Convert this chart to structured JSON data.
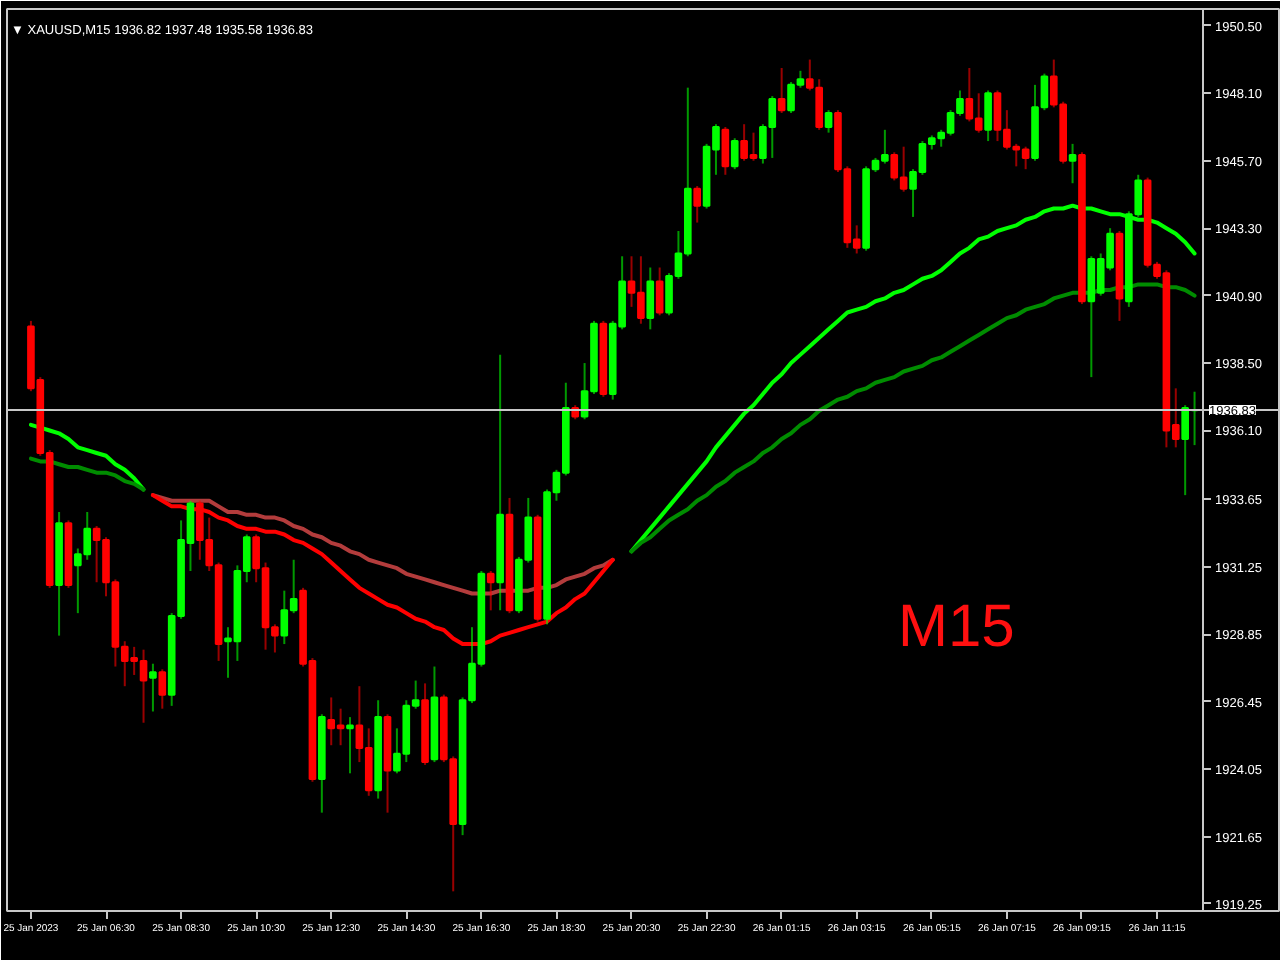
{
  "chart_data": {
    "type": "candlestick",
    "title": "▼ XAUUSD,M15 1936.82 1937.48 1935.58 1936.83",
    "annotations": [
      "M15"
    ],
    "categories": [
      "25 Jan 2023",
      null,
      null,
      null,
      null,
      null,
      null,
      null,
      "25 Jan 06:30",
      null,
      null,
      null,
      null,
      null,
      null,
      null,
      "25 Jan 08:30",
      null,
      null,
      null,
      null,
      null,
      null,
      null,
      "25 Jan 10:30",
      null,
      null,
      null,
      null,
      null,
      null,
      null,
      "25 Jan 12:30",
      null,
      null,
      null,
      null,
      null,
      null,
      null,
      "25 Jan 14:30",
      null,
      null,
      null,
      null,
      null,
      null,
      null,
      "25 Jan 16:30",
      null,
      null,
      null,
      null,
      null,
      null,
      null,
      "25 Jan 18:30",
      null,
      null,
      null,
      null,
      null,
      null,
      null,
      "25 Jan 20:30",
      null,
      null,
      null,
      null,
      null,
      null,
      null,
      "25 Jan 22:30",
      null,
      null,
      null,
      null,
      null,
      null,
      null,
      "26 Jan 01:15",
      null,
      null,
      null,
      null,
      null,
      null,
      null,
      "26 Jan 03:15",
      null,
      null,
      null,
      null,
      null,
      null,
      null,
      "26 Jan 05:15",
      null,
      null,
      null,
      null,
      null,
      null,
      null,
      "26 Jan 07:15",
      null,
      null,
      null,
      null,
      null,
      null,
      null,
      "26 Jan 09:15",
      null,
      null,
      null,
      null,
      null,
      null,
      null,
      "26 Jan 11:15",
      null,
      null,
      null,
      null
    ],
    "ohlc": [
      [
        1939.8,
        1940.0,
        1937.5,
        1937.6
      ],
      [
        1937.9,
        1938.0,
        1935.2,
        1935.3
      ],
      [
        1935.3,
        1935.4,
        1930.5,
        1930.6
      ],
      [
        1930.6,
        1933.2,
        1928.8,
        1932.8
      ],
      [
        1932.8,
        1932.9,
        1930.5,
        1930.6
      ],
      [
        1931.3,
        1931.9,
        1929.6,
        1931.7
      ],
      [
        1931.7,
        1933.2,
        1931.5,
        1932.6
      ],
      [
        1932.6,
        1932.7,
        1930.7,
        1932.2
      ],
      [
        1932.2,
        1932.3,
        1930.2,
        1930.7
      ],
      [
        1930.7,
        1930.8,
        1927.7,
        1928.4
      ],
      [
        1928.4,
        1928.6,
        1927.0,
        1927.9
      ],
      [
        1928.0,
        1928.4,
        1927.4,
        1927.9
      ],
      [
        1927.9,
        1928.3,
        1925.7,
        1927.2
      ],
      [
        1927.3,
        1927.8,
        1926.1,
        1927.5
      ],
      [
        1927.5,
        1927.6,
        1926.2,
        1926.7
      ],
      [
        1926.7,
        1929.6,
        1926.3,
        1929.5
      ],
      [
        1929.5,
        1932.9,
        1929.4,
        1932.2
      ],
      [
        1932.1,
        1933.6,
        1931.1,
        1933.5
      ],
      [
        1933.5,
        1933.6,
        1931.5,
        1932.2
      ],
      [
        1932.2,
        1933.0,
        1931.1,
        1931.3
      ],
      [
        1931.3,
        1931.4,
        1927.9,
        1928.5
      ],
      [
        1928.6,
        1929.1,
        1927.3,
        1928.7
      ],
      [
        1928.6,
        1931.3,
        1927.9,
        1931.1
      ],
      [
        1931.1,
        1932.4,
        1930.7,
        1932.3
      ],
      [
        1932.3,
        1932.4,
        1930.7,
        1931.2
      ],
      [
        1931.2,
        1931.4,
        1928.3,
        1929.1
      ],
      [
        1929.1,
        1929.2,
        1928.2,
        1928.8
      ],
      [
        1928.8,
        1930.4,
        1928.5,
        1929.7
      ],
      [
        1929.7,
        1931.5,
        1929.6,
        1930.1
      ],
      [
        1930.4,
        1930.5,
        1927.7,
        1927.8
      ],
      [
        1927.9,
        1928.0,
        1923.6,
        1923.7
      ],
      [
        1923.7,
        1926.0,
        1922.5,
        1925.9
      ],
      [
        1925.8,
        1926.6,
        1924.9,
        1925.5
      ],
      [
        1925.6,
        1926.2,
        1924.9,
        1925.5
      ],
      [
        1925.5,
        1925.9,
        1923.9,
        1925.6
      ],
      [
        1925.6,
        1927.0,
        1924.3,
        1924.8
      ],
      [
        1924.8,
        1925.5,
        1923.1,
        1923.3
      ],
      [
        1923.3,
        1926.5,
        1923.0,
        1925.9
      ],
      [
        1925.9,
        1926.0,
        1922.5,
        1924.0
      ],
      [
        1924.0,
        1925.5,
        1923.9,
        1924.6
      ],
      [
        1924.6,
        1926.5,
        1924.3,
        1926.3
      ],
      [
        1926.3,
        1927.2,
        1926.2,
        1926.5
      ],
      [
        1926.5,
        1927.1,
        1924.2,
        1924.3
      ],
      [
        1924.4,
        1927.7,
        1924.3,
        1926.6
      ],
      [
        1926.6,
        1926.7,
        1924.3,
        1924.4
      ],
      [
        1924.4,
        1924.5,
        1919.7,
        1922.1
      ],
      [
        1922.1,
        1926.6,
        1921.7,
        1926.5
      ],
      [
        1926.5,
        1929.1,
        1926.4,
        1927.8
      ],
      [
        1927.8,
        1931.1,
        1927.7,
        1931.0
      ],
      [
        1931.0,
        1931.1,
        1929.7,
        1930.7
      ],
      [
        1930.7,
        1938.8,
        1929.7,
        1933.1
      ],
      [
        1933.1,
        1933.7,
        1929.6,
        1929.7
      ],
      [
        1929.7,
        1931.6,
        1929.6,
        1931.5
      ],
      [
        1931.5,
        1933.7,
        1931.4,
        1933.0
      ],
      [
        1933.0,
        1933.1,
        1929.3,
        1929.4
      ],
      [
        1929.4,
        1934.0,
        1929.2,
        1933.9
      ],
      [
        1933.9,
        1934.7,
        1933.6,
        1934.6
      ],
      [
        1934.6,
        1937.8,
        1934.5,
        1936.9
      ],
      [
        1936.9,
        1937.0,
        1936.5,
        1936.6
      ],
      [
        1936.6,
        1938.5,
        1936.5,
        1937.5
      ],
      [
        1937.5,
        1940.0,
        1937.4,
        1939.9
      ],
      [
        1939.9,
        1940.0,
        1937.3,
        1937.4
      ],
      [
        1937.4,
        1940.0,
        1937.2,
        1939.9
      ],
      [
        1939.8,
        1942.3,
        1939.7,
        1941.4
      ],
      [
        1941.4,
        1942.3,
        1940.5,
        1941.0
      ],
      [
        1941.0,
        1942.3,
        1939.9,
        1940.1
      ],
      [
        1940.1,
        1941.9,
        1939.7,
        1941.4
      ],
      [
        1941.4,
        1941.9,
        1940.2,
        1940.3
      ],
      [
        1940.3,
        1941.7,
        1940.2,
        1941.6
      ],
      [
        1941.6,
        1943.2,
        1941.5,
        1942.4
      ],
      [
        1942.4,
        1948.3,
        1942.3,
        1944.7
      ],
      [
        1944.7,
        1944.8,
        1943.5,
        1944.1
      ],
      [
        1944.1,
        1946.3,
        1944.0,
        1946.2
      ],
      [
        1946.1,
        1947.0,
        1945.2,
        1946.9
      ],
      [
        1946.8,
        1946.9,
        1945.2,
        1945.5
      ],
      [
        1945.5,
        1946.5,
        1945.4,
        1946.4
      ],
      [
        1946.4,
        1947.0,
        1945.7,
        1945.8
      ],
      [
        1945.9,
        1946.7,
        1945.7,
        1945.8
      ],
      [
        1945.8,
        1947.0,
        1945.6,
        1946.9
      ],
      [
        1946.9,
        1948.0,
        1945.8,
        1947.9
      ],
      [
        1947.9,
        1949.0,
        1947.4,
        1947.5
      ],
      [
        1947.5,
        1948.5,
        1947.4,
        1948.4
      ],
      [
        1948.4,
        1948.9,
        1948.3,
        1948.6
      ],
      [
        1948.6,
        1949.3,
        1948.2,
        1948.3
      ],
      [
        1948.3,
        1948.6,
        1946.8,
        1946.9
      ],
      [
        1946.9,
        1947.5,
        1946.7,
        1947.4
      ],
      [
        1947.4,
        1947.5,
        1945.3,
        1945.4
      ],
      [
        1945.4,
        1945.5,
        1942.6,
        1942.8
      ],
      [
        1942.9,
        1943.4,
        1942.4,
        1942.6
      ],
      [
        1942.6,
        1945.5,
        1942.5,
        1945.4
      ],
      [
        1945.4,
        1945.8,
        1945.3,
        1945.7
      ],
      [
        1945.7,
        1946.8,
        1945.6,
        1945.9
      ],
      [
        1945.9,
        1946.0,
        1945.0,
        1945.1
      ],
      [
        1945.1,
        1946.2,
        1944.6,
        1944.7
      ],
      [
        1944.7,
        1945.4,
        1943.7,
        1945.3
      ],
      [
        1945.3,
        1946.4,
        1945.2,
        1946.3
      ],
      [
        1946.3,
        1946.6,
        1946.1,
        1946.5
      ],
      [
        1946.5,
        1946.8,
        1946.2,
        1946.7
      ],
      [
        1946.7,
        1947.5,
        1946.6,
        1947.4
      ],
      [
        1947.4,
        1948.2,
        1947.3,
        1947.9
      ],
      [
        1947.9,
        1949.0,
        1947.1,
        1947.2
      ],
      [
        1947.2,
        1948.1,
        1946.7,
        1946.8
      ],
      [
        1946.8,
        1948.2,
        1946.4,
        1948.1
      ],
      [
        1948.1,
        1948.2,
        1946.4,
        1946.8
      ],
      [
        1946.8,
        1947.5,
        1946.1,
        1946.2
      ],
      [
        1946.2,
        1946.3,
        1945.5,
        1946.1
      ],
      [
        1946.1,
        1946.2,
        1945.4,
        1945.8
      ],
      [
        1945.8,
        1948.4,
        1945.7,
        1947.6
      ],
      [
        1947.6,
        1948.8,
        1947.5,
        1948.7
      ],
      [
        1948.7,
        1949.3,
        1947.6,
        1947.7
      ],
      [
        1947.7,
        1947.8,
        1945.6,
        1945.7
      ],
      [
        1945.7,
        1946.3,
        1944.9,
        1945.9
      ],
      [
        1945.9,
        1946.0,
        1940.6,
        1940.7
      ],
      [
        1940.7,
        1942.3,
        1938.0,
        1942.2
      ],
      [
        1941.0,
        1942.4,
        1940.9,
        1942.2
      ],
      [
        1941.9,
        1943.3,
        1941.8,
        1943.1
      ],
      [
        1943.1,
        1943.2,
        1940.0,
        1940.8
      ],
      [
        1940.7,
        1943.9,
        1940.5,
        1943.8
      ],
      [
        1943.8,
        1945.2,
        1943.7,
        1945.0
      ],
      [
        1945.0,
        1945.1,
        1941.9,
        1942.0
      ],
      [
        1942.0,
        1942.1,
        1941.5,
        1941.6
      ],
      [
        1941.7,
        1941.8,
        1935.5,
        1936.1
      ],
      [
        1936.3,
        1937.6,
        1935.5,
        1935.8
      ],
      [
        1935.8,
        1937.0,
        1933.8,
        1936.9
      ],
      [
        1936.82,
        1937.48,
        1935.58,
        1936.83
      ]
    ],
    "colors": [
      "#ff0000",
      "#ff0000",
      "#ff0000",
      "#00ff00",
      "#ff0000",
      "#00ff00",
      "#00ff00",
      "#ff0000",
      "#ff0000",
      "#ff0000",
      "#ff0000",
      "#ff0000",
      "#ff0000",
      "#00ff00",
      "#ff0000",
      "#00ff00",
      "#00ff00",
      "#00ff00",
      "#ff0000",
      "#ff0000",
      "#ff0000",
      "#00ff00",
      "#00ff00",
      "#00ff00",
      "#ff0000",
      "#ff0000",
      "#ff0000",
      "#00ff00",
      "#00ff00",
      "#ff0000",
      "#ff0000",
      "#00ff00",
      "#ff0000",
      "#ff0000",
      "#00ff00",
      "#ff0000",
      "#ff0000",
      "#00ff00",
      "#ff0000",
      "#00ff00",
      "#00ff00",
      "#00ff00",
      "#ff0000",
      "#00ff00",
      "#ff0000",
      "#ff0000",
      "#00ff00",
      "#00ff00",
      "#00ff00",
      "#ff0000",
      "#00ff00",
      "#ff0000",
      "#00ff00",
      "#00ff00",
      "#ff0000",
      "#00ff00",
      "#00ff00",
      "#00ff00",
      "#ff0000",
      "#00ff00",
      "#00ff00",
      "#ff0000",
      "#00ff00",
      "#00ff00",
      "#ff0000",
      "#ff0000",
      "#00ff00",
      "#ff0000",
      "#00ff00",
      "#00ff00",
      "#00ff00",
      "#ff0000",
      "#00ff00",
      "#00ff00",
      "#ff0000",
      "#00ff00",
      "#ff0000",
      "#ff0000",
      "#00ff00",
      "#00ff00",
      "#ff0000",
      "#00ff00",
      "#00ff00",
      "#ff0000",
      "#ff0000",
      "#00ff00",
      "#ff0000",
      "#ff0000",
      "#ff0000",
      "#00ff00",
      "#00ff00",
      "#00ff00",
      "#ff0000",
      "#ff0000",
      "#00ff00",
      "#00ff00",
      "#00ff00",
      "#00ff00",
      "#00ff00",
      "#00ff00",
      "#ff0000",
      "#ff0000",
      "#00ff00",
      "#ff0000",
      "#ff0000",
      "#ff0000",
      "#ff0000",
      "#00ff00",
      "#00ff00",
      "#ff0000",
      "#ff0000",
      "#00ff00",
      "#ff0000",
      "#00ff00",
      "#00ff00",
      "#00ff00",
      "#ff0000",
      "#00ff00",
      "#00ff00",
      "#ff0000",
      "#ff0000",
      "#ff0000",
      "#ff0000",
      "#00ff00",
      "#00ff00"
    ],
    "series": [
      {
        "type": "line",
        "color": "#00ff00",
        "values": [
          1936.3,
          1936.2,
          1936.1,
          1936.0,
          1935.8,
          1935.5,
          1935.4,
          1935.3,
          1935.2,
          1934.9,
          1934.7,
          1934.4,
          1934.0,
          null,
          null,
          null,
          null,
          null,
          null,
          null,
          null,
          null,
          null,
          null,
          null,
          null,
          null,
          null,
          null,
          null,
          null,
          null,
          null,
          null,
          null,
          null,
          null,
          null,
          null,
          null,
          null,
          null,
          null,
          null,
          null,
          null,
          null,
          null,
          null,
          null,
          null,
          null,
          null,
          null,
          null,
          null,
          null,
          null,
          null,
          null,
          null,
          null,
          null,
          null,
          null,
          null,
          null,
          null,
          null,
          null,
          null,
          null,
          null,
          null,
          null,
          null,
          null,
          null,
          null,
          null,
          null,
          null,
          null,
          null,
          null,
          null,
          null,
          null,
          null,
          null,
          null,
          null,
          null,
          null,
          null,
          null,
          null,
          null,
          null,
          null,
          null,
          null,
          null,
          null,
          null,
          null,
          null,
          null,
          null,
          null,
          null,
          null,
          null,
          null,
          null,
          null,
          null,
          null,
          null,
          null,
          null,
          null,
          null,
          null,
          null
        ]
      },
      {
        "type": "line",
        "color": "#008c00",
        "values": [
          1935.1,
          1935.0,
          1935.0,
          1934.9,
          1934.8,
          1934.8,
          1934.7,
          1934.6,
          1934.6,
          1934.5,
          1934.3,
          1934.2,
          1934.0,
          null,
          null,
          null,
          null,
          null,
          null,
          null,
          null,
          null,
          null,
          null,
          null,
          null,
          null,
          null,
          null,
          null,
          null,
          null,
          null,
          null,
          null,
          null,
          null,
          null,
          null,
          null,
          null,
          null,
          null,
          null,
          null,
          null,
          null,
          null,
          null,
          null,
          null,
          null,
          null,
          null,
          null,
          null,
          null,
          null,
          null,
          null,
          null,
          null,
          null,
          null,
          null,
          null,
          null,
          null,
          null,
          null,
          null,
          null,
          null,
          null,
          null,
          null,
          null,
          null,
          null,
          null,
          null,
          null,
          null,
          null,
          null,
          null,
          null,
          null,
          null,
          null,
          null,
          null,
          null,
          null,
          null,
          null,
          null,
          null,
          null,
          null,
          null,
          null,
          null,
          null,
          null,
          null,
          null,
          null,
          null,
          null,
          null,
          null,
          null,
          null,
          null,
          null,
          null,
          null,
          null,
          null,
          null,
          null,
          null,
          null,
          null
        ]
      },
      {
        "type": "line",
        "color": "#b33c3c",
        "values": [
          null,
          null,
          null,
          null,
          null,
          null,
          null,
          null,
          null,
          null,
          null,
          null,
          null,
          1933.8,
          1933.7,
          1933.6,
          1933.6,
          1933.6,
          1933.6,
          1933.6,
          1933.4,
          1933.2,
          1933.2,
          1933.1,
          1933.1,
          1933.0,
          1933.0,
          1932.9,
          1932.7,
          1932.6,
          1932.4,
          1932.3,
          1932.1,
          1932.0,
          1931.8,
          1931.7,
          1931.5,
          1931.4,
          1931.3,
          1931.2,
          1931.0,
          1930.9,
          1930.8,
          1930.7,
          1930.6,
          1930.5,
          1930.4,
          1930.3,
          1930.3,
          1930.3,
          1930.4,
          1930.4,
          1930.4,
          1930.4,
          1930.5,
          1930.5,
          1930.6,
          1930.8,
          1930.9,
          1931.0,
          1931.2,
          1931.3,
          1931.5,
          null,
          null,
          null,
          null,
          null,
          null,
          null,
          null,
          null,
          null,
          null,
          null,
          null,
          null,
          null,
          null,
          null,
          null,
          null,
          null,
          null,
          null,
          null,
          null,
          null,
          null,
          null,
          null,
          null,
          null,
          null,
          null,
          null,
          null,
          null,
          null,
          null,
          null,
          null,
          null,
          null,
          null,
          null,
          null,
          null,
          null,
          null,
          null,
          null,
          null,
          null,
          null,
          null,
          null,
          null,
          null,
          null,
          null,
          null,
          null,
          null,
          null
        ]
      },
      {
        "type": "line",
        "color": "#ff0000",
        "values": [
          null,
          null,
          null,
          null,
          null,
          null,
          null,
          null,
          null,
          null,
          null,
          null,
          null,
          1933.8,
          1933.6,
          1933.4,
          1933.4,
          1933.3,
          1933.3,
          1933.2,
          1933.0,
          1932.9,
          1932.7,
          1932.6,
          1932.6,
          1932.5,
          1932.5,
          1932.4,
          1932.2,
          1932.1,
          1931.9,
          1931.7,
          1931.4,
          1931.1,
          1930.8,
          1930.5,
          1930.3,
          1930.1,
          1929.9,
          1929.8,
          1929.6,
          1929.4,
          1929.3,
          1929.1,
          1929.0,
          1928.7,
          1928.5,
          1928.5,
          1928.5,
          1928.6,
          1928.8,
          1928.9,
          1929.0,
          1929.1,
          1929.2,
          1929.3,
          1929.6,
          1929.8,
          1930.1,
          1930.3,
          1930.7,
          1931.1,
          1931.5,
          null,
          null,
          null,
          null,
          null,
          null,
          null,
          null,
          null,
          null,
          null,
          null,
          null,
          null,
          null,
          null,
          null,
          null,
          null,
          null,
          null,
          null,
          null,
          null,
          null,
          null,
          null,
          null,
          null,
          null,
          null,
          null,
          null,
          null,
          null,
          null,
          null,
          null,
          null,
          null,
          null,
          null,
          null,
          null,
          null,
          null,
          null,
          null,
          null,
          null,
          null,
          null,
          null,
          null,
          null,
          null,
          null,
          null,
          null,
          null,
          null,
          null
        ]
      },
      {
        "type": "line",
        "color": "#00ff00",
        "values": [
          null,
          null,
          null,
          null,
          null,
          null,
          null,
          null,
          null,
          null,
          null,
          null,
          null,
          null,
          null,
          null,
          null,
          null,
          null,
          null,
          null,
          null,
          null,
          null,
          null,
          null,
          null,
          null,
          null,
          null,
          null,
          null,
          null,
          null,
          null,
          null,
          null,
          null,
          null,
          null,
          null,
          null,
          null,
          null,
          null,
          null,
          null,
          null,
          null,
          null,
          null,
          null,
          null,
          null,
          null,
          null,
          null,
          null,
          null,
          null,
          null,
          null,
          null,
          null,
          1931.8,
          1932.2,
          1932.6,
          1933.0,
          1933.4,
          1933.8,
          1934.2,
          1934.6,
          1935.0,
          1935.5,
          1935.9,
          1936.3,
          1936.7,
          1937.0,
          1937.4,
          1937.8,
          1938.1,
          1938.5,
          1938.8,
          1939.1,
          1939.4,
          1939.7,
          1940.0,
          1940.3,
          1940.4,
          1940.5,
          1940.7,
          1940.8,
          1941.0,
          1941.1,
          1941.3,
          1941.5,
          1941.6,
          1941.8,
          1942.1,
          1942.4,
          1942.6,
          1942.9,
          1943.0,
          1943.2,
          1943.3,
          1943.4,
          1943.6,
          1943.7,
          1943.9,
          1944.0,
          1944.0,
          1944.1,
          1944.0,
          1944.0,
          1943.9,
          1943.8,
          1943.8,
          1943.7,
          1943.6,
          1943.6,
          1943.5,
          1943.3,
          1943.1,
          1942.8,
          1942.4
        ]
      },
      {
        "type": "line",
        "color": "#008c00",
        "values": [
          null,
          null,
          null,
          null,
          null,
          null,
          null,
          null,
          null,
          null,
          null,
          null,
          null,
          null,
          null,
          null,
          null,
          null,
          null,
          null,
          null,
          null,
          null,
          null,
          null,
          null,
          null,
          null,
          null,
          null,
          null,
          null,
          null,
          null,
          null,
          null,
          null,
          null,
          null,
          null,
          null,
          null,
          null,
          null,
          null,
          null,
          null,
          null,
          null,
          null,
          null,
          null,
          null,
          null,
          null,
          null,
          null,
          null,
          null,
          null,
          null,
          null,
          null,
          null,
          1931.8,
          1932.1,
          1932.3,
          1932.6,
          1932.9,
          1933.1,
          1933.3,
          1933.6,
          1933.8,
          1934.1,
          1934.3,
          1934.6,
          1934.8,
          1935.0,
          1935.3,
          1935.5,
          1935.8,
          1936.0,
          1936.3,
          1936.5,
          1936.8,
          1937.0,
          1937.2,
          1937.3,
          1937.5,
          1937.6,
          1937.8,
          1937.9,
          1938.0,
          1938.2,
          1938.3,
          1938.4,
          1938.6,
          1938.7,
          1938.9,
          1939.1,
          1939.3,
          1939.5,
          1939.7,
          1939.9,
          1940.1,
          1940.2,
          1940.4,
          1940.5,
          1940.6,
          1940.8,
          1940.9,
          1941.0,
          1941.0,
          1941.0,
          1941.1,
          1941.1,
          1941.2,
          1941.2,
          1941.3,
          1941.3,
          1941.3,
          1941.2,
          1941.2,
          1941.1,
          1940.9
        ]
      }
    ],
    "ylim": [
      1919.0,
      1951.1
    ],
    "yticks": [
      {
        "value": 1950.5,
        "label": "1950.50"
      },
      {
        "value": 1948.1,
        "label": "1948.10"
      },
      {
        "value": 1945.7,
        "label": "1945.70"
      },
      {
        "value": 1943.3,
        "label": "1943.30"
      },
      {
        "value": 1940.9,
        "label": "1940.90"
      },
      {
        "value": 1938.5,
        "label": "1938.50"
      },
      {
        "value": 1936.1,
        "label": "1936.10"
      },
      {
        "value": 1933.65,
        "label": "1933.65"
      },
      {
        "value": 1931.25,
        "label": "1931.25"
      },
      {
        "value": 1928.85,
        "label": "1928.85"
      },
      {
        "value": 1926.45,
        "label": "1926.45"
      },
      {
        "value": 1924.05,
        "label": "1924.05"
      },
      {
        "value": 1921.65,
        "label": "1921.65"
      },
      {
        "value": 1919.25,
        "label": "1919.25"
      }
    ],
    "ref_lines": [
      {
        "axis": "y",
        "value": 1936.83,
        "label": "1936.83",
        "color": "#c8c8c8"
      }
    ]
  }
}
